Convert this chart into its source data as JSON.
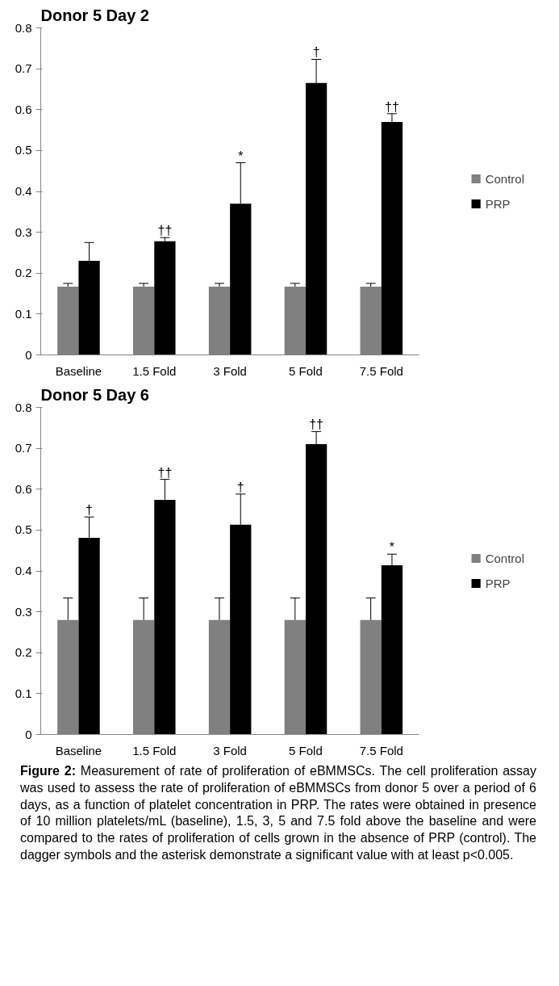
{
  "chart_data": [
    {
      "type": "bar",
      "title": "Donor 5 Day 2",
      "categories": [
        "Baseline",
        "1.5 Fold",
        "3 Fold",
        "5 Fold",
        "7.5 Fold"
      ],
      "ylim": [
        0,
        0.8
      ],
      "yticks": [
        0,
        0.1,
        0.2,
        0.3,
        0.4,
        0.5,
        0.6,
        0.7,
        0.8
      ],
      "grid": false,
      "legend": "right",
      "series": [
        {
          "name": "Control",
          "color": "#808080",
          "values": [
            0.167,
            0.167,
            0.167,
            0.167,
            0.167
          ],
          "errors": [
            [
              0.167,
              0.175
            ],
            [
              0.167,
              0.175
            ],
            [
              0.167,
              0.175
            ],
            [
              0.167,
              0.175
            ],
            [
              0.167,
              0.175
            ]
          ]
        },
        {
          "name": "PRP",
          "color": "#000000",
          "values": [
            0.23,
            0.278,
            0.37,
            0.665,
            0.57
          ],
          "errors": [
            [
              0.23,
              0.275
            ],
            [
              0.278,
              0.287
            ],
            [
              0.37,
              0.47
            ],
            [
              0.665,
              0.723
            ],
            [
              0.57,
              0.59
            ]
          ],
          "value_labels": [
            null,
            "††",
            "*",
            "†",
            "††"
          ]
        }
      ]
    },
    {
      "type": "bar",
      "title": "Donor 5 Day 6",
      "categories": [
        "Baseline",
        "1.5 Fold",
        "3 Fold",
        "5 Fold",
        "7.5 Fold"
      ],
      "ylim": [
        0,
        0.8
      ],
      "yticks": [
        0,
        0.1,
        0.2,
        0.3,
        0.4,
        0.5,
        0.6,
        0.7,
        0.8
      ],
      "grid": false,
      "legend": "right",
      "series": [
        {
          "name": "Control",
          "color": "#808080",
          "values": [
            0.28,
            0.28,
            0.28,
            0.28,
            0.28
          ],
          "errors": [
            [
              0.28,
              0.334
            ],
            [
              0.28,
              0.334
            ],
            [
              0.28,
              0.334
            ],
            [
              0.28,
              0.334
            ],
            [
              0.28,
              0.334
            ]
          ]
        },
        {
          "name": "PRP",
          "color": "#000000",
          "values": [
            0.481,
            0.574,
            0.513,
            0.71,
            0.414
          ],
          "errors": [
            [
              0.481,
              0.532
            ],
            [
              0.574,
              0.624
            ],
            [
              0.513,
              0.588
            ],
            [
              0.71,
              0.741
            ],
            [
              0.414,
              0.441
            ]
          ],
          "value_labels": [
            "†",
            "††",
            "†",
            "††",
            "*"
          ]
        }
      ],
      "annotations": [
        "Figure 2: Measurement of rate of proliferation of eBMMSCs. The cell proliferation assay was used to assess the rate of proliferation of eBMMSCs from donor 5 over a period of 6 days, as a function of platelet concentration in PRP. The rates were obtained in presence of 10 million platelets/mL (baseline), 1.5, 3, 5 and 7.5 fold above the baseline and were compared to the rates of proliferation of cells grown in the absence of PRP (control). The dagger symbols and the asterisk demonstrate a significant value with at least p<0.005."
      ]
    }
  ]
}
